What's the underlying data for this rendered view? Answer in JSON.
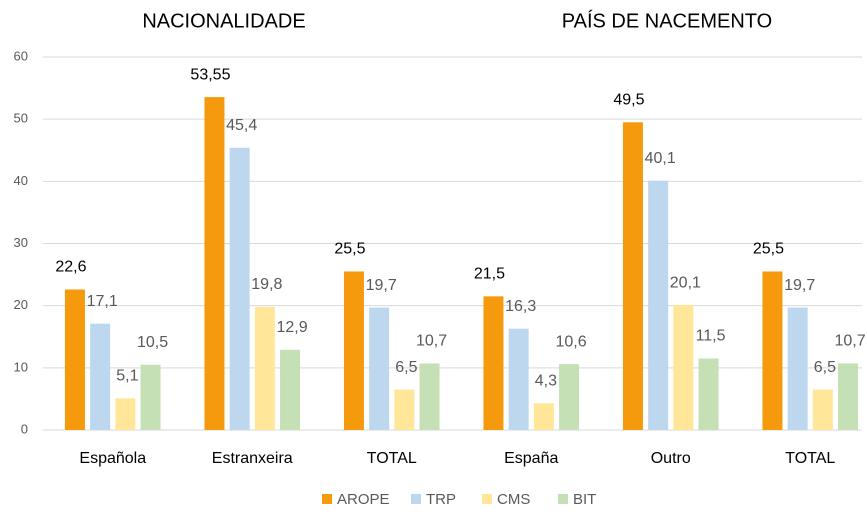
{
  "chart_data": {
    "type": "bar",
    "annotations": [
      "NACIONALIDADE",
      "PAÍS DE NACEMENTO"
    ],
    "categories": [
      "Española",
      "Estranxeira",
      "TOTAL",
      "España",
      "Outro",
      "TOTAL"
    ],
    "series": [
      {
        "name": "AROPE",
        "color": "#f59a0c",
        "values": [
          22.6,
          53.55,
          25.5,
          21.5,
          49.5,
          25.5
        ],
        "value_labels": [
          "22,6",
          "53,55",
          "25,5",
          "21,5",
          "49,5",
          "25,5"
        ]
      },
      {
        "name": "TRP",
        "color": "#bdd7ee",
        "values": [
          17.1,
          45.4,
          19.7,
          16.3,
          40.1,
          19.7
        ],
        "value_labels": [
          "17,1",
          "45,4",
          "19,7",
          "16,3",
          "40,1",
          "19,7"
        ]
      },
      {
        "name": "CMS",
        "color": "#ffe699",
        "values": [
          5.1,
          19.8,
          6.5,
          4.3,
          20.1,
          6.5
        ],
        "value_labels": [
          "5,1",
          "19,8",
          "6,5",
          "4,3",
          "20,1",
          "6,5"
        ]
      },
      {
        "name": "BIT",
        "color": "#c5e0b4",
        "values": [
          10.5,
          12.9,
          10.7,
          10.6,
          11.5,
          10.7
        ],
        "value_labels": [
          "10,5",
          "12,9",
          "10,7",
          "10,6",
          "11,5",
          "10,7"
        ]
      }
    ],
    "ylim": [
      0,
      60
    ],
    "yticks": [
      0,
      10,
      20,
      30,
      40,
      50,
      60
    ],
    "grid": true,
    "legend": "bottom"
  }
}
